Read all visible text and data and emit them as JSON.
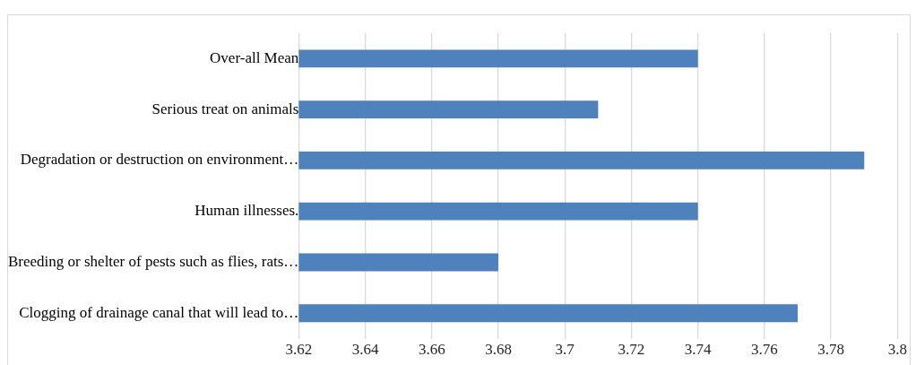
{
  "chart_data": {
    "type": "bar",
    "orientation": "horizontal",
    "categories": [
      "Over-all Mean",
      "Serious treat on animals",
      "Degradation or destruction on environment…",
      "Human illnesses.",
      "Breeding or shelter of pests such as flies, rats…",
      "Clogging of drainage canal that will lead to…"
    ],
    "values": [
      3.74,
      3.71,
      3.79,
      3.74,
      3.68,
      3.77
    ],
    "color": "#4f81bd",
    "xlim": [
      3.62,
      3.8
    ],
    "xticks": [
      3.62,
      3.64,
      3.66,
      3.68,
      3.7,
      3.72,
      3.74,
      3.76,
      3.78,
      3.8
    ],
    "grid": "x",
    "legend": false
  }
}
